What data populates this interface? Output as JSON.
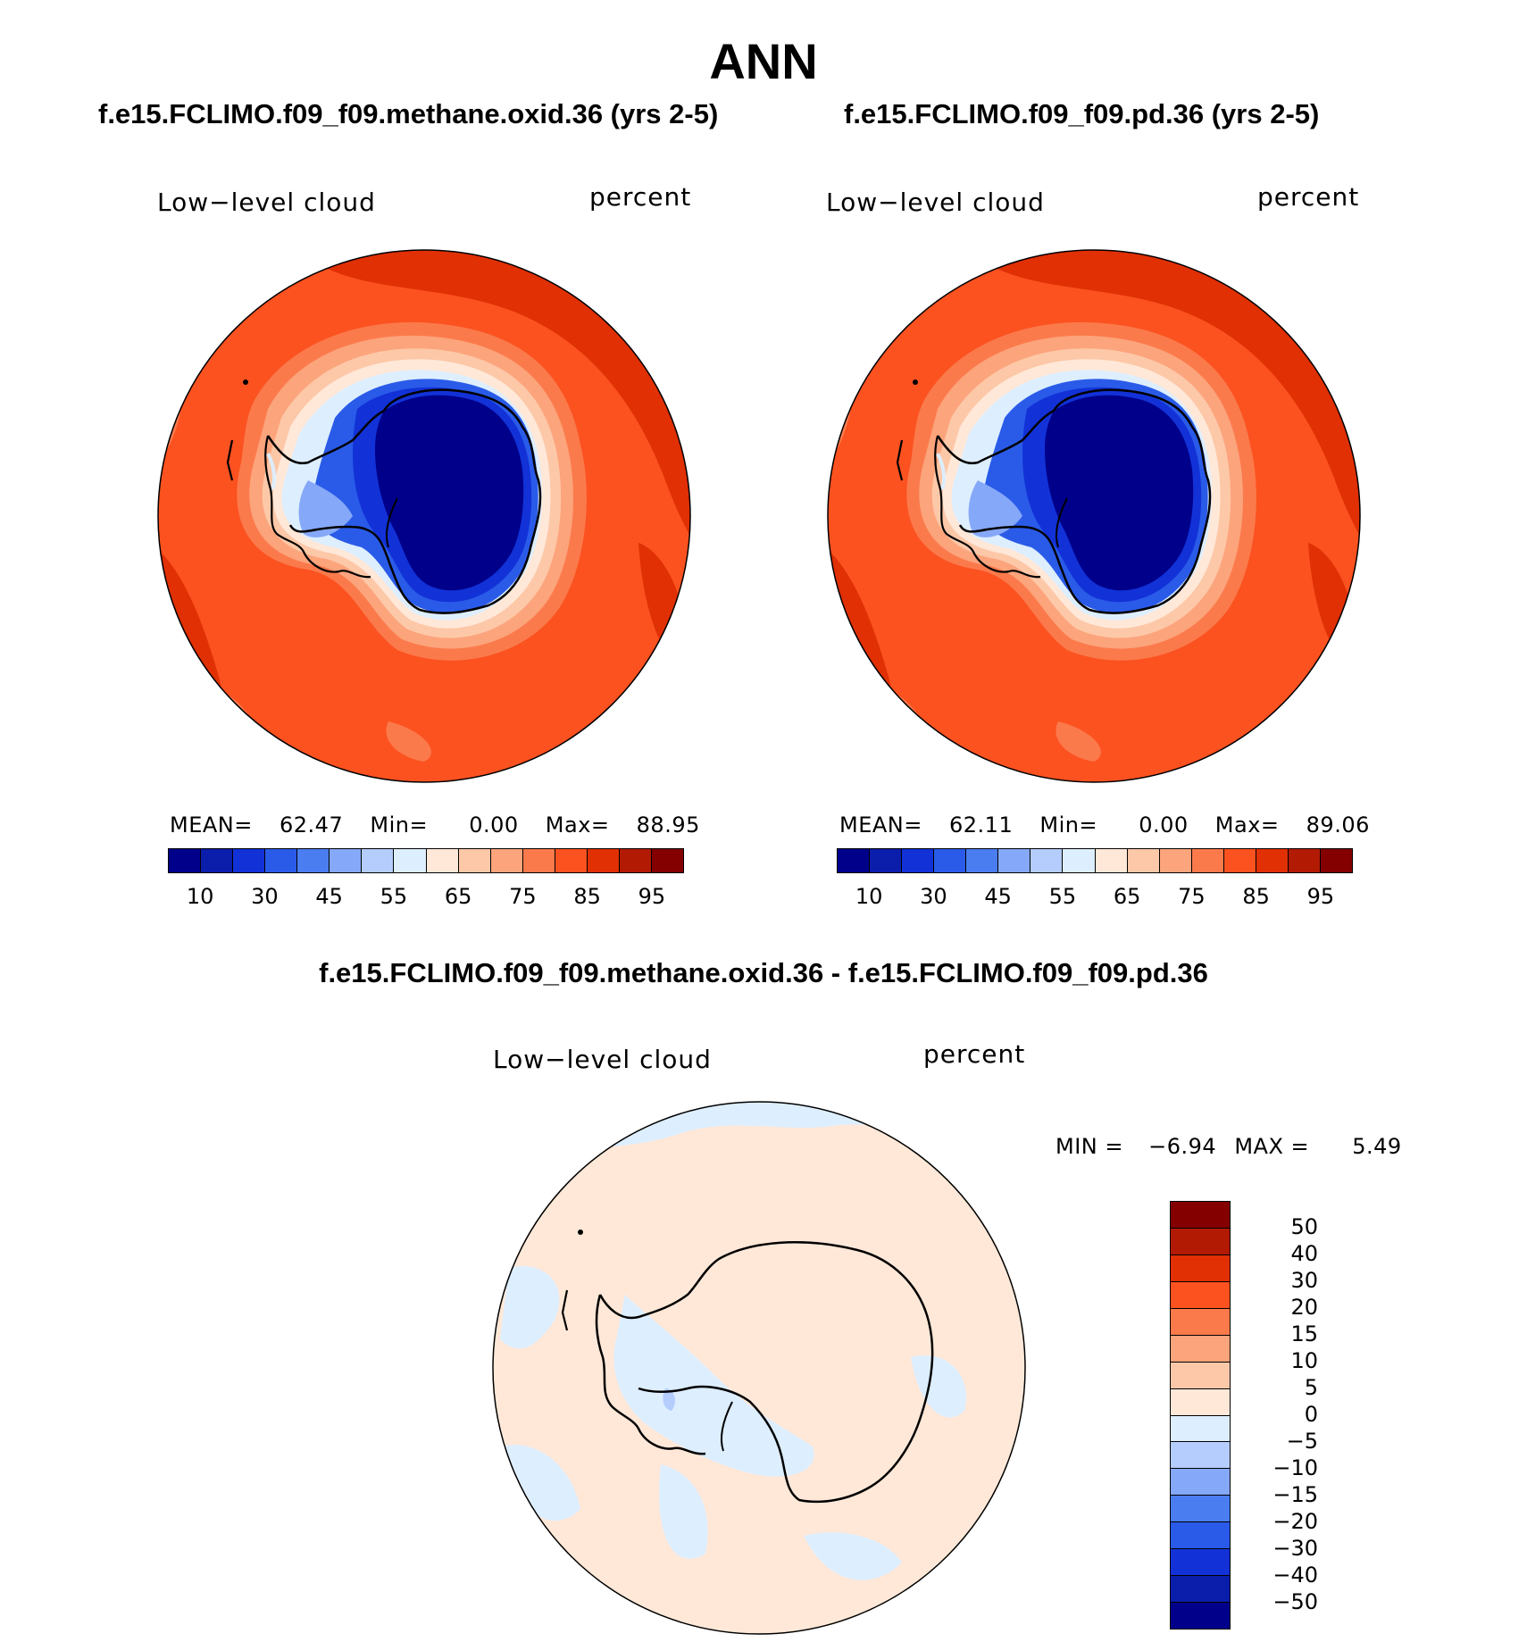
{
  "title": "ANN",
  "panels": [
    {
      "case_title": "f.e15.FCLIMO.f09_f09.methane.oxid.36 (yrs 2-5)",
      "variable": "Low−level cloud",
      "units": "percent",
      "stats": {
        "mean_label": "MEAN=",
        "mean": "62.47",
        "min_label": "Min=",
        "min": "0.00",
        "max_label": "Max=",
        "max": "88.95"
      }
    },
    {
      "case_title": "f.e15.FCLIMO.f09_f09.pd.36 (yrs 2-5)",
      "variable": "Low−level cloud",
      "units": "percent",
      "stats": {
        "mean_label": "MEAN=",
        "mean": "62.11",
        "min_label": "Min=",
        "min": "0.00",
        "max_label": "Max=",
        "max": "89.06"
      }
    }
  ],
  "diff": {
    "title": "f.e15.FCLIMO.f09_f09.methane.oxid.36 - f.e15.FCLIMO.f09_f09.pd.36",
    "variable": "Low−level cloud",
    "units": "percent",
    "min_label": "MIN =",
    "min": "−6.94",
    "max_label": "MAX =",
    "max": "5.49"
  },
  "chart_data": [
    {
      "type": "heatmap",
      "title": "f.e15.FCLIMO.f09_f09.methane.oxid.36 (yrs 2-5)",
      "projection": "south polar stereographic",
      "field": "Low-level cloud (percent)",
      "mean": 62.47,
      "min": 0.0,
      "max": 88.95,
      "colorbar_levels": [
        10,
        20,
        30,
        40,
        45,
        50,
        55,
        60,
        65,
        70,
        75,
        80,
        85,
        90,
        95
      ],
      "colorbar_tick_labels": [
        "10",
        "30",
        "45",
        "55",
        "65",
        "75",
        "85",
        "95"
      ],
      "colors": [
        "#00008b",
        "#0a1eab",
        "#1232d8",
        "#2a5be8",
        "#4a7ef0",
        "#86a8f8",
        "#b4cdfc",
        "#ddeeff",
        "#ffe8d8",
        "#fdc8a8",
        "#fca47c",
        "#fb7a4c",
        "#fb5220",
        "#e03004",
        "#b21a04",
        "#840000"
      ]
    },
    {
      "type": "heatmap",
      "title": "f.e15.FCLIMO.f09_f09.pd.36 (yrs 2-5)",
      "projection": "south polar stereographic",
      "field": "Low-level cloud (percent)",
      "mean": 62.11,
      "min": 0.0,
      "max": 89.06,
      "colorbar_levels": [
        10,
        20,
        30,
        40,
        45,
        50,
        55,
        60,
        65,
        70,
        75,
        80,
        85,
        90,
        95
      ],
      "colorbar_tick_labels": [
        "10",
        "30",
        "45",
        "55",
        "65",
        "75",
        "85",
        "95"
      ],
      "colors": [
        "#00008b",
        "#0a1eab",
        "#1232d8",
        "#2a5be8",
        "#4a7ef0",
        "#86a8f8",
        "#b4cdfc",
        "#ddeeff",
        "#ffe8d8",
        "#fdc8a8",
        "#fca47c",
        "#fb7a4c",
        "#fb5220",
        "#e03004",
        "#b21a04",
        "#840000"
      ]
    },
    {
      "type": "heatmap",
      "title": "f.e15.FCLIMO.f09_f09.methane.oxid.36 - f.e15.FCLIMO.f09_f09.pd.36",
      "projection": "south polar stereographic",
      "field": "Low-level cloud difference (percent)",
      "min": -6.94,
      "max": 5.49,
      "colorbar_tick_labels": [
        "50",
        "40",
        "30",
        "20",
        "15",
        "10",
        "5",
        "0",
        "−5",
        "−10",
        "−15",
        "−20",
        "−30",
        "−40",
        "−50"
      ],
      "colors": [
        "#840000",
        "#b21a04",
        "#e03004",
        "#fb5220",
        "#fb7a4c",
        "#fca47c",
        "#fdc8a8",
        "#ffe8d8",
        "#ddeeff",
        "#b4cdfc",
        "#86a8f8",
        "#4a7ef0",
        "#2a5be8",
        "#1232d8",
        "#0a1eab",
        "#00008b"
      ]
    }
  ]
}
